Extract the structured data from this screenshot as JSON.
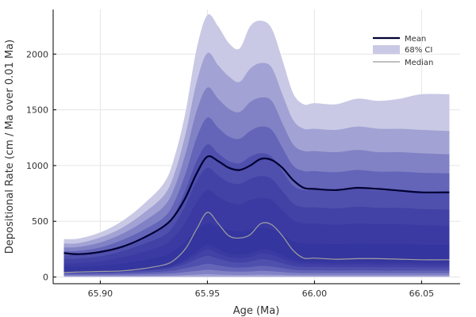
{
  "chart_data": {
    "type": "area",
    "title": "",
    "xlabel": "Age (Ma)",
    "ylabel": "Depositional Rate (cm / Ma over 0.01 Ma)",
    "xlim": [
      65.878,
      66.068
    ],
    "ylim": [
      -60,
      2400
    ],
    "xticks": [
      65.9,
      65.95,
      66.0,
      66.05
    ],
    "xtick_labels": [
      "65.90",
      "65.95",
      "66.00",
      "66.05"
    ],
    "yticks": [
      0,
      500,
      1000,
      1500,
      2000
    ],
    "ytick_labels": [
      "0",
      "500",
      "1000",
      "1500",
      "2000"
    ],
    "grid": true,
    "legend_position": "top-right",
    "legend": [
      {
        "label": "Mean",
        "kind": "line",
        "color": "#000033"
      },
      {
        "label": "68% CI",
        "kind": "band",
        "color": "#c9c9e6"
      },
      {
        "label": "Median",
        "kind": "line",
        "color": "#999999"
      }
    ],
    "x": [
      65.883,
      65.89,
      65.9,
      65.91,
      65.92,
      65.93,
      65.935,
      65.94,
      65.945,
      65.95,
      65.955,
      65.96,
      65.965,
      65.97,
      65.975,
      65.98,
      65.985,
      65.99,
      65.995,
      66.0,
      66.01,
      66.02,
      66.03,
      66.04,
      66.05,
      66.063
    ],
    "series": [
      {
        "name": "Mean",
        "values": [
          215,
          205,
          225,
          270,
          350,
          460,
          560,
          720,
          930,
          1080,
          1040,
          980,
          960,
          1000,
          1060,
          1050,
          980,
          870,
          800,
          790,
          780,
          800,
          790,
          775,
          760,
          760
        ]
      },
      {
        "name": "Median",
        "values": [
          40,
          45,
          50,
          55,
          75,
          110,
          160,
          260,
          430,
          580,
          480,
          370,
          350,
          380,
          480,
          470,
          370,
          240,
          170,
          170,
          160,
          165,
          165,
          160,
          155,
          155
        ]
      }
    ],
    "bands": [
      {
        "upper": [
          340,
          345,
          400,
          500,
          650,
          850,
          1100,
          1500,
          2050,
          2350,
          2250,
          2100,
          2050,
          2250,
          2300,
          2230,
          1950,
          1650,
          1550,
          1560,
          1550,
          1600,
          1580,
          1600,
          1640,
          1640
        ],
        "lower": [
          0,
          0,
          0,
          0,
          0,
          0,
          0,
          0,
          0,
          0,
          0,
          0,
          0,
          0,
          0,
          0,
          0,
          0,
          0,
          0,
          0,
          0,
          0,
          0,
          0,
          0
        ],
        "color": "#c9c9e6"
      },
      {
        "upper": [
          300,
          305,
          355,
          440,
          570,
          740,
          950,
          1300,
          1750,
          2010,
          1900,
          1800,
          1750,
          1870,
          1920,
          1880,
          1640,
          1410,
          1330,
          1330,
          1320,
          1350,
          1330,
          1330,
          1320,
          1310
        ],
        "lower": [
          5,
          5,
          5,
          5,
          5,
          5,
          5,
          5,
          5,
          5,
          5,
          5,
          5,
          5,
          5,
          5,
          5,
          5,
          5,
          5,
          5,
          5,
          5,
          5,
          5,
          5
        ],
        "color": "#a2a2d4"
      },
      {
        "upper": [
          265,
          270,
          310,
          385,
          495,
          640,
          820,
          1120,
          1490,
          1700,
          1600,
          1510,
          1480,
          1570,
          1610,
          1580,
          1380,
          1190,
          1130,
          1130,
          1120,
          1140,
          1120,
          1120,
          1110,
          1100
        ],
        "lower": [
          10,
          10,
          10,
          10,
          10,
          12,
          14,
          18,
          22,
          25,
          22,
          20,
          18,
          20,
          22,
          20,
          18,
          15,
          15,
          15,
          15,
          15,
          15,
          15,
          15,
          15
        ],
        "color": "#8181c5"
      },
      {
        "upper": [
          230,
          235,
          265,
          330,
          420,
          540,
          690,
          940,
          1250,
          1430,
          1340,
          1260,
          1240,
          1310,
          1350,
          1320,
          1160,
          1000,
          950,
          950,
          940,
          960,
          945,
          945,
          935,
          930
        ],
        "lower": [
          20,
          20,
          20,
          22,
          25,
          30,
          35,
          45,
          55,
          65,
          58,
          50,
          48,
          50,
          55,
          52,
          45,
          38,
          35,
          35,
          35,
          35,
          35,
          35,
          35,
          35
        ],
        "color": "#6464b8"
      },
      {
        "upper": [
          195,
          200,
          225,
          280,
          355,
          455,
          580,
          790,
          1040,
          1190,
          1110,
          1040,
          1020,
          1080,
          1110,
          1080,
          950,
          820,
          780,
          780,
          770,
          790,
          775,
          775,
          765,
          760
        ],
        "lower": [
          30,
          30,
          32,
          35,
          40,
          50,
          60,
          80,
          100,
          120,
          105,
          90,
          85,
          90,
          100,
          95,
          80,
          65,
          60,
          60,
          58,
          60,
          58,
          58,
          58,
          58
        ],
        "color": "#4f4fad"
      },
      {
        "upper": [
          160,
          165,
          185,
          230,
          295,
          375,
          480,
          650,
          860,
          980,
          910,
          850,
          835,
          880,
          905,
          880,
          770,
          660,
          625,
          625,
          615,
          630,
          620,
          620,
          610,
          605
        ],
        "lower": [
          35,
          38,
          40,
          45,
          55,
          70,
          90,
          120,
          160,
          190,
          165,
          140,
          130,
          140,
          160,
          150,
          125,
          100,
          90,
          90,
          88,
          90,
          88,
          88,
          86,
          86
        ],
        "color": "#4141a6"
      },
      {
        "upper": [
          120,
          125,
          140,
          175,
          225,
          290,
          370,
          500,
          670,
          780,
          720,
          670,
          650,
          690,
          710,
          690,
          600,
          510,
          480,
          480,
          470,
          480,
          475,
          475,
          465,
          460
        ],
        "lower": [
          40,
          42,
          45,
          50,
          62,
          80,
          105,
          145,
          200,
          250,
          215,
          180,
          170,
          180,
          210,
          200,
          165,
          130,
          115,
          115,
          112,
          115,
          112,
          112,
          110,
          110
        ],
        "color": "#3a3aa2"
      },
      {
        "upper": [
          90,
          92,
          100,
          120,
          150,
          190,
          240,
          320,
          420,
          480,
          450,
          420,
          410,
          430,
          445,
          430,
          380,
          320,
          300,
          300,
          295,
          300,
          298,
          298,
          292,
          290
        ],
        "lower": [
          45,
          46,
          48,
          52,
          65,
          85,
          115,
          165,
          230,
          290,
          250,
          210,
          200,
          215,
          245,
          235,
          195,
          155,
          135,
          135,
          132,
          135,
          132,
          132,
          130,
          130
        ],
        "color": "#35359f"
      }
    ]
  }
}
